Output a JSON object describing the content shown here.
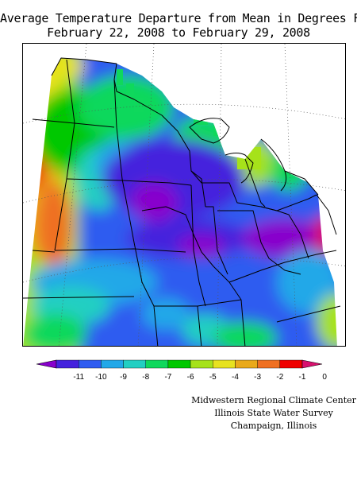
{
  "title_line1": "Average Temperature Departure from Mean in Degrees F",
  "title_line2": "February 22, 2008 to February 29, 2008",
  "legend": {
    "ticks": [
      "-11",
      "-10",
      "-9",
      "-8",
      "-7",
      "-6",
      "-5",
      "-4",
      "-3",
      "-2",
      "-1",
      "0"
    ],
    "colors": [
      "#8800cc",
      "#4422dd",
      "#2f5cf0",
      "#22a8e8",
      "#22cfc2",
      "#0fd85c",
      "#00c800",
      "#a6e21a",
      "#e7e21f",
      "#e9a91a",
      "#ef7021",
      "#ef0000",
      "#d8106e"
    ]
  },
  "credits": {
    "line1": "Midwestern Regional Climate Center",
    "line2": "Illinois State Water Survey",
    "line3": "Champaign, Illinois"
  }
}
